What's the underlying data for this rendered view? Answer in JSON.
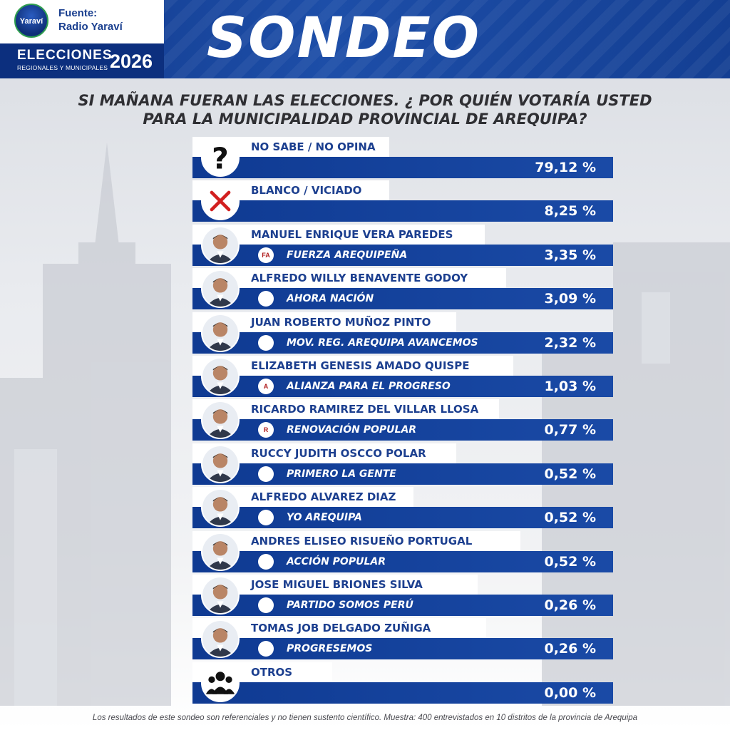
{
  "header": {
    "brand_logo_text": "Yaraví",
    "source_line1": "Fuente:",
    "source_line2": "Radio Yaraví",
    "elections_word": "ELECCIONES",
    "elections_sub": "REGIONALES Y MUNICIPALES",
    "elections_year": "2026",
    "title": "SONDEO",
    "accent_color": "#1a4aa6"
  },
  "question": {
    "line1": "SI MAÑANA FUERAN LAS ELECCIONES. ¿ POR  QUIÉN VOTARÍA USTED",
    "line2": "PARA LA MUNICIPALIDAD PROVINCIAL DE AREQUIPA?"
  },
  "chart_data": {
    "type": "table",
    "rows": [
      {
        "name": "NO SABE / NO OPINA",
        "party": "",
        "value": 79.12,
        "label": "79,12 %",
        "icon": "question-icon"
      },
      {
        "name": "BLANCO / VICIADO",
        "party": "",
        "value": 8.25,
        "label": "8,25 %",
        "icon": "x-mark-icon"
      },
      {
        "name": "MANUEL ENRIQUE VERA PAREDES",
        "party": "FUERZA AREQUIPEÑA",
        "value": 3.35,
        "label": "3,35 %",
        "icon": "candidate-photo",
        "logo": "FA"
      },
      {
        "name": "ALFREDO WILLY BENAVENTE GODOY",
        "party": "AHORA NACIÓN",
        "value": 3.09,
        "label": "3,09 %",
        "icon": "candidate-photo"
      },
      {
        "name": "JUAN ROBERTO MUÑOZ PINTO",
        "party": "MOV. REG. AREQUIPA AVANCEMOS",
        "value": 2.32,
        "label": "2,32 %",
        "icon": "candidate-photo"
      },
      {
        "name": "ELIZABETH GENESIS AMADO QUISPE",
        "party": "ALIANZA PARA EL PROGRESO",
        "value": 1.03,
        "label": "1,03 %",
        "icon": "candidate-photo",
        "logo": "A"
      },
      {
        "name": "RICARDO RAMIREZ DEL VILLAR LLOSA",
        "party": "RENOVACIÓN POPULAR",
        "value": 0.77,
        "label": "0,77 %",
        "icon": "candidate-photo",
        "logo": "R"
      },
      {
        "name": "RUCCY JUDITH OSCCO POLAR",
        "party": "PRIMERO LA GENTE",
        "value": 0.52,
        "label": "0,52 %",
        "icon": "candidate-photo"
      },
      {
        "name": "ALFREDO ALVAREZ DIAZ",
        "party": "YO AREQUIPA",
        "value": 0.52,
        "label": "0,52 %",
        "icon": "candidate-photo"
      },
      {
        "name": "ANDRES ELISEO RISUEÑO PORTUGAL",
        "party": "ACCIÓN POPULAR",
        "value": 0.52,
        "label": "0,52 %",
        "icon": "candidate-photo"
      },
      {
        "name": "JOSE MIGUEL BRIONES SILVA",
        "party": "PARTIDO SOMOS PERÚ",
        "value": 0.26,
        "label": "0,26 %",
        "icon": "candidate-photo"
      },
      {
        "name": "TOMAS JOB DELGADO ZUÑIGA",
        "party": "PROGRESEMOS",
        "value": 0.26,
        "label": "0,26 %",
        "icon": "candidate-photo"
      },
      {
        "name": "OTROS",
        "party": "",
        "value": 0.0,
        "label": "0,00 %",
        "icon": "group-icon"
      }
    ]
  },
  "footnote": "Los resultados de este sondeo son referenciales y no tienen sustento científico. Muestra: 400 entrevistados en 10 distritos de la provincia de  Arequipa"
}
